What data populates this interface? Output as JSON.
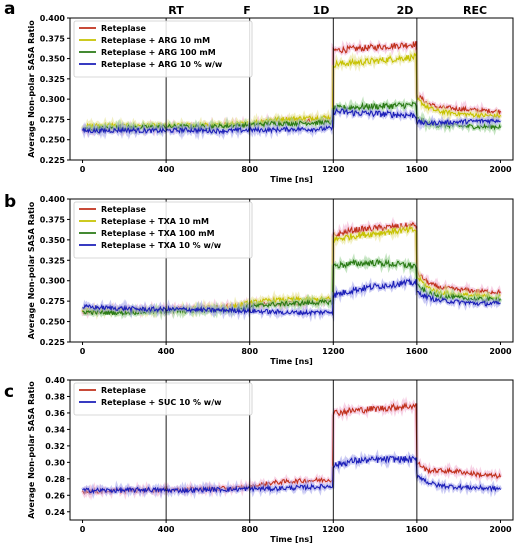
{
  "phases": [
    "RT",
    "F",
    "1D",
    "2D",
    "REC"
  ],
  "chart_data": [
    {
      "type": "line",
      "panel_label": "a",
      "xlabel": "Time [ns]",
      "ylabel": "Average Non-polar SASA Ratio",
      "xlim": [
        -60,
        2060
      ],
      "ylim": [
        0.225,
        0.4
      ],
      "xticks": [
        0,
        400,
        800,
        1200,
        1600,
        2000
      ],
      "yticks": [
        0.225,
        0.25,
        0.275,
        0.3,
        0.325,
        0.35,
        0.375,
        0.4
      ],
      "ytick_labels": [
        "0.225",
        "0.250",
        "0.275",
        "0.300",
        "0.325",
        "0.350",
        "0.375",
        "0.400"
      ],
      "phase_lines_x": [
        400,
        800,
        1200,
        1600
      ],
      "legend_position": "top-left",
      "series": [
        {
          "name": "Reteplase",
          "color": "#c0301c",
          "shade": "#f2b6d6",
          "x": [
            0,
            100,
            200,
            300,
            400,
            500,
            600,
            700,
            800,
            900,
            1000,
            1100,
            1199,
            1200,
            1300,
            1400,
            1500,
            1599,
            1600,
            1650,
            1700,
            1800,
            1900,
            2000
          ],
          "values": [
            0.262,
            0.263,
            0.264,
            0.265,
            0.265,
            0.266,
            0.267,
            0.268,
            0.269,
            0.272,
            0.273,
            0.274,
            0.275,
            0.36,
            0.362,
            0.364,
            0.366,
            0.368,
            0.305,
            0.295,
            0.29,
            0.288,
            0.286,
            0.285
          ]
        },
        {
          "name": "Reteplase + ARG 10 mM",
          "color": "#c6c200",
          "shade": "#e8e49a",
          "x": [
            0,
            100,
            200,
            300,
            400,
            500,
            600,
            700,
            800,
            900,
            1000,
            1100,
            1199,
            1200,
            1300,
            1400,
            1500,
            1599,
            1600,
            1650,
            1700,
            1800,
            1900,
            2000
          ],
          "values": [
            0.266,
            0.268,
            0.267,
            0.268,
            0.267,
            0.268,
            0.268,
            0.269,
            0.27,
            0.275,
            0.276,
            0.277,
            0.278,
            0.343,
            0.345,
            0.347,
            0.35,
            0.352,
            0.3,
            0.29,
            0.285,
            0.282,
            0.28,
            0.279
          ]
        },
        {
          "name": "Reteplase + ARG 100 mM",
          "color": "#2a7a15",
          "shade": "#9fd49a",
          "x": [
            0,
            100,
            200,
            300,
            400,
            500,
            600,
            700,
            800,
            900,
            1000,
            1100,
            1199,
            1200,
            1300,
            1400,
            1500,
            1599,
            1600,
            1650,
            1700,
            1800,
            1900,
            2000
          ],
          "values": [
            0.263,
            0.264,
            0.265,
            0.265,
            0.266,
            0.266,
            0.266,
            0.267,
            0.268,
            0.27,
            0.27,
            0.271,
            0.271,
            0.288,
            0.29,
            0.291,
            0.292,
            0.293,
            0.276,
            0.27,
            0.268,
            0.267,
            0.266,
            0.266
          ]
        },
        {
          "name": "Reteplase + ARG 10 % w/w",
          "color": "#1c1fb8",
          "shade": "#a8a8ec",
          "x": [
            0,
            100,
            200,
            300,
            400,
            500,
            600,
            700,
            800,
            900,
            1000,
            1100,
            1199,
            1200,
            1300,
            1400,
            1500,
            1599,
            1600,
            1650,
            1700,
            1800,
            1900,
            2000
          ],
          "values": [
            0.261,
            0.261,
            0.262,
            0.261,
            0.261,
            0.262,
            0.261,
            0.261,
            0.262,
            0.262,
            0.263,
            0.263,
            0.264,
            0.285,
            0.283,
            0.282,
            0.281,
            0.28,
            0.272,
            0.27,
            0.271,
            0.272,
            0.273,
            0.274
          ]
        }
      ]
    },
    {
      "type": "line",
      "panel_label": "b",
      "xlabel": "Time [ns]",
      "ylabel": "Average Non-polar SASA Ratio",
      "xlim": [
        -60,
        2060
      ],
      "ylim": [
        0.225,
        0.4
      ],
      "xticks": [
        0,
        400,
        800,
        1200,
        1600,
        2000
      ],
      "yticks": [
        0.225,
        0.25,
        0.275,
        0.3,
        0.325,
        0.35,
        0.375,
        0.4
      ],
      "ytick_labels": [
        "0.225",
        "0.250",
        "0.275",
        "0.300",
        "0.325",
        "0.350",
        "0.375",
        "0.400"
      ],
      "phase_lines_x": [
        400,
        800,
        1200,
        1600
      ],
      "legend_position": "top-left",
      "series": [
        {
          "name": "Reteplase",
          "color": "#c0301c",
          "shade": "#f2b6d6",
          "x": [
            0,
            100,
            200,
            300,
            400,
            500,
            600,
            700,
            800,
            900,
            1000,
            1100,
            1199,
            1200,
            1300,
            1400,
            1500,
            1599,
            1600,
            1650,
            1700,
            1800,
            1900,
            2000
          ],
          "values": [
            0.262,
            0.263,
            0.264,
            0.264,
            0.265,
            0.266,
            0.267,
            0.268,
            0.27,
            0.272,
            0.273,
            0.274,
            0.276,
            0.355,
            0.362,
            0.364,
            0.366,
            0.368,
            0.31,
            0.298,
            0.292,
            0.289,
            0.287,
            0.286
          ]
        },
        {
          "name": "Reteplase + TXA 10 mM",
          "color": "#c6c200",
          "shade": "#e8e49a",
          "x": [
            0,
            100,
            200,
            300,
            400,
            500,
            600,
            700,
            800,
            900,
            1000,
            1100,
            1199,
            1200,
            1300,
            1400,
            1500,
            1599,
            1600,
            1650,
            1700,
            1800,
            1900,
            2000
          ],
          "values": [
            0.264,
            0.264,
            0.263,
            0.264,
            0.264,
            0.265,
            0.266,
            0.267,
            0.273,
            0.276,
            0.277,
            0.277,
            0.278,
            0.35,
            0.355,
            0.358,
            0.361,
            0.362,
            0.305,
            0.292,
            0.286,
            0.283,
            0.281,
            0.28
          ]
        },
        {
          "name": "Reteplase + TXA 100 mM",
          "color": "#2a7a15",
          "shade": "#9fd49a",
          "x": [
            0,
            100,
            200,
            300,
            400,
            500,
            600,
            700,
            800,
            900,
            1000,
            1100,
            1199,
            1200,
            1300,
            1400,
            1500,
            1599,
            1600,
            1650,
            1700,
            1800,
            1900,
            2000
          ],
          "values": [
            0.262,
            0.261,
            0.261,
            0.262,
            0.263,
            0.263,
            0.264,
            0.264,
            0.268,
            0.271,
            0.272,
            0.273,
            0.274,
            0.318,
            0.321,
            0.322,
            0.32,
            0.318,
            0.294,
            0.285,
            0.281,
            0.279,
            0.277,
            0.277
          ]
        },
        {
          "name": "Reteplase + TXA 10 % w/w",
          "color": "#1c1fb8",
          "shade": "#a8a8ec",
          "x": [
            0,
            100,
            200,
            300,
            400,
            500,
            600,
            700,
            800,
            900,
            1000,
            1100,
            1199,
            1200,
            1300,
            1400,
            1500,
            1599,
            1600,
            1650,
            1700,
            1800,
            1900,
            2000
          ],
          "values": [
            0.268,
            0.267,
            0.266,
            0.265,
            0.265,
            0.265,
            0.264,
            0.264,
            0.263,
            0.262,
            0.261,
            0.261,
            0.262,
            0.282,
            0.289,
            0.293,
            0.296,
            0.298,
            0.286,
            0.28,
            0.276,
            0.274,
            0.272,
            0.272
          ]
        }
      ]
    },
    {
      "type": "line",
      "panel_label": "c",
      "xlabel": "Time [ns]",
      "ylabel": "Average Non-polar SASA Ratio",
      "xlim": [
        -60,
        2060
      ],
      "ylim": [
        0.23,
        0.4
      ],
      "xticks": [
        0,
        400,
        800,
        1200,
        1600,
        2000
      ],
      "yticks": [
        0.24,
        0.26,
        0.28,
        0.3,
        0.32,
        0.34,
        0.36,
        0.38,
        0.4
      ],
      "ytick_labels": [
        "0.24",
        "0.26",
        "0.28",
        "0.30",
        "0.32",
        "0.34",
        "0.36",
        "0.38",
        "0.40"
      ],
      "phase_lines_x": [
        400,
        800,
        1200,
        1600
      ],
      "legend_position": "top-left",
      "series": [
        {
          "name": "Reteplase",
          "color": "#c0301c",
          "shade": "#f2b6d6",
          "x": [
            0,
            100,
            200,
            300,
            400,
            500,
            600,
            700,
            800,
            900,
            1000,
            1100,
            1199,
            1200,
            1300,
            1400,
            1500,
            1599,
            1600,
            1650,
            1700,
            1800,
            1900,
            2000
          ],
          "values": [
            0.265,
            0.265,
            0.266,
            0.266,
            0.267,
            0.267,
            0.268,
            0.268,
            0.27,
            0.275,
            0.277,
            0.278,
            0.279,
            0.36,
            0.363,
            0.365,
            0.367,
            0.369,
            0.3,
            0.29,
            0.29,
            0.289,
            0.285,
            0.283
          ]
        },
        {
          "name": "Reteplase + SUC 10 % w/w",
          "color": "#1c1fb8",
          "shade": "#a8a8ec",
          "x": [
            0,
            100,
            200,
            300,
            400,
            500,
            600,
            700,
            800,
            900,
            1000,
            1100,
            1199,
            1200,
            1300,
            1400,
            1500,
            1599,
            1600,
            1650,
            1700,
            1800,
            1900,
            2000
          ],
          "values": [
            0.266,
            0.266,
            0.266,
            0.267,
            0.266,
            0.266,
            0.267,
            0.267,
            0.268,
            0.268,
            0.269,
            0.27,
            0.271,
            0.296,
            0.302,
            0.303,
            0.304,
            0.303,
            0.285,
            0.276,
            0.272,
            0.27,
            0.269,
            0.268
          ]
        }
      ]
    }
  ]
}
